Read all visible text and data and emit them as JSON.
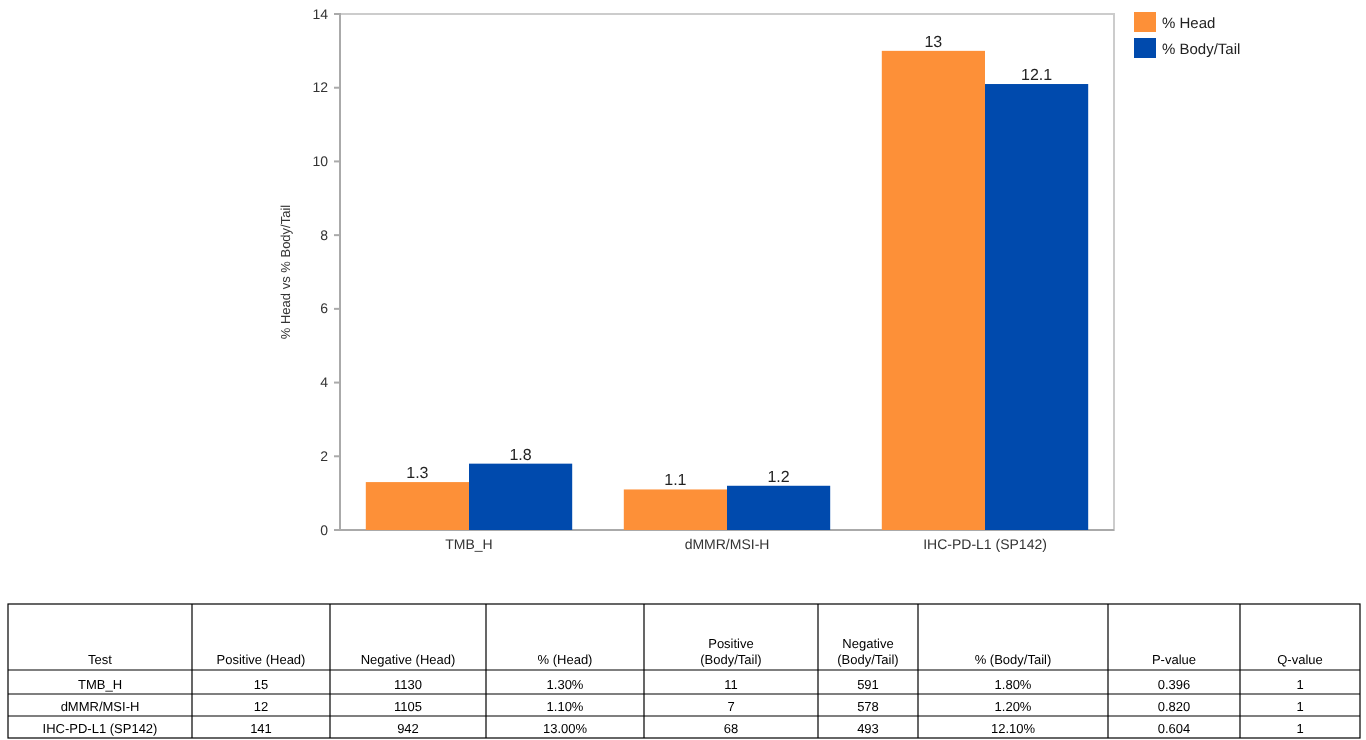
{
  "chart_data": [
    {
      "type": "bar",
      "ylabel": "% Head vs % Body/Tail",
      "categories": [
        "TMB_H",
        "dMMR/MSI-H",
        "IHC-PD-L1 (SP142)"
      ],
      "series": [
        {
          "name": "% Head",
          "color": "#fd9038",
          "values": [
            1.3,
            1.1,
            13
          ]
        },
        {
          "name": "% Body/Tail",
          "color": "#004aad",
          "values": [
            1.8,
            1.2,
            12.1
          ]
        }
      ],
      "ylim": [
        0,
        14
      ],
      "yticks": [
        0,
        2,
        4,
        6,
        8,
        10,
        12,
        14
      ],
      "data_labels": true,
      "legend": "top right",
      "grid": false
    },
    {
      "type": "other",
      "categories": [
        "Test",
        "Positive (Head)",
        "Negative (Head)",
        "% (Head)",
        "Positive\n(Body/Tail)",
        "Negative\n(Body/Tail)",
        "% (Body/Tail)",
        "P-value",
        "Q-value"
      ],
      "cell_labels": [
        [
          "TMB_H",
          "15",
          "1130",
          "1.30%",
          "11",
          "591",
          "1.80%",
          "0.396",
          "1"
        ],
        [
          "dMMR/MSI-H",
          "12",
          "1105",
          "1.10%",
          "7",
          "578",
          "1.20%",
          "0.820",
          "1"
        ],
        [
          "IHC-PD-L1 (SP142)",
          "141",
          "942",
          "13.00%",
          "68",
          "493",
          "12.10%",
          "0.604",
          "1"
        ]
      ]
    }
  ]
}
